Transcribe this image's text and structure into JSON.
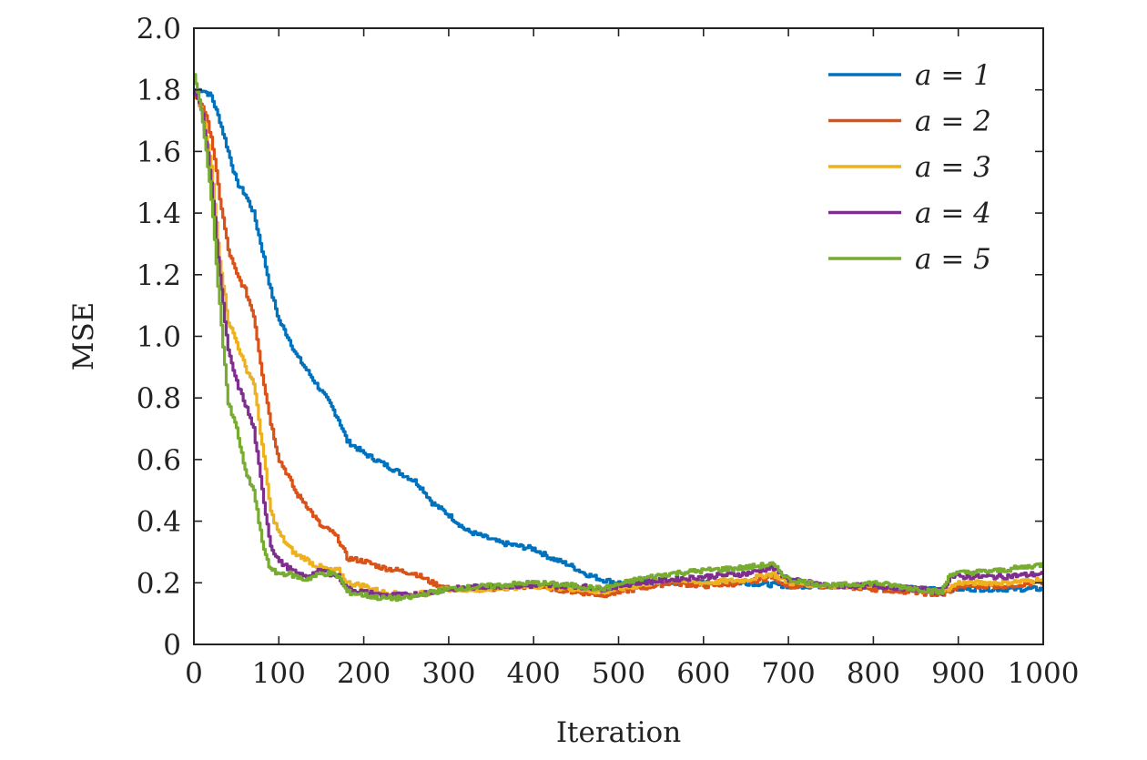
{
  "chart_data": {
    "type": "line",
    "title": "",
    "xlabel": "Iteration",
    "ylabel": "MSE",
    "xlim": [
      0,
      1000
    ],
    "ylim": [
      0,
      2.0
    ],
    "xticks": [
      0,
      100,
      200,
      300,
      400,
      500,
      600,
      700,
      800,
      900,
      1000
    ],
    "xtick_labels": [
      "0",
      "100",
      "200",
      "300",
      "400",
      "500",
      "600",
      "700",
      "800",
      "900",
      "1000"
    ],
    "yticks": [
      0,
      0.2,
      0.4,
      0.6,
      0.8,
      1.0,
      1.2,
      1.4,
      1.6,
      1.8,
      2.0
    ],
    "ytick_labels": [
      "0",
      "0.2",
      "0.4",
      "0.6",
      "0.8",
      "1.0",
      "1.2",
      "1.4",
      "1.6",
      "1.8",
      "2.0"
    ],
    "grid": false,
    "legend_position": "top-right",
    "series": [
      {
        "name": "a = 1",
        "color": "#0072BD",
        "x": [
          0,
          10,
          20,
          30,
          40,
          50,
          60,
          70,
          80,
          90,
          100,
          110,
          120,
          130,
          140,
          150,
          160,
          170,
          180,
          190,
          200,
          220,
          240,
          260,
          270,
          280,
          300,
          320,
          340,
          360,
          380,
          400,
          420,
          440,
          460,
          480,
          500,
          520,
          550,
          600,
          650,
          700,
          750,
          800,
          850,
          900,
          950,
          1000
        ],
        "y": [
          1.8,
          1.8,
          1.78,
          1.7,
          1.6,
          1.5,
          1.46,
          1.4,
          1.28,
          1.15,
          1.05,
          1.0,
          0.94,
          0.9,
          0.86,
          0.82,
          0.78,
          0.73,
          0.66,
          0.64,
          0.62,
          0.59,
          0.56,
          0.53,
          0.5,
          0.46,
          0.42,
          0.37,
          0.35,
          0.33,
          0.32,
          0.31,
          0.28,
          0.26,
          0.23,
          0.21,
          0.2,
          0.2,
          0.2,
          0.2,
          0.2,
          0.19,
          0.19,
          0.19,
          0.18,
          0.18,
          0.18,
          0.18
        ]
      },
      {
        "name": "a = 2",
        "color": "#D95319",
        "x": [
          0,
          10,
          20,
          30,
          40,
          50,
          60,
          70,
          80,
          90,
          100,
          110,
          120,
          130,
          140,
          150,
          160,
          170,
          180,
          200,
          220,
          240,
          260,
          280,
          300,
          350,
          400,
          450,
          480,
          520,
          560,
          600,
          650,
          680,
          700,
          750,
          800,
          850,
          880,
          900,
          950,
          1000
        ],
        "y": [
          1.78,
          1.75,
          1.65,
          1.45,
          1.28,
          1.2,
          1.15,
          1.07,
          0.88,
          0.72,
          0.6,
          0.55,
          0.49,
          0.46,
          0.42,
          0.38,
          0.37,
          0.34,
          0.28,
          0.27,
          0.25,
          0.24,
          0.23,
          0.2,
          0.18,
          0.18,
          0.19,
          0.17,
          0.16,
          0.18,
          0.2,
          0.19,
          0.2,
          0.22,
          0.19,
          0.19,
          0.18,
          0.17,
          0.16,
          0.19,
          0.19,
          0.2
        ]
      },
      {
        "name": "a = 3",
        "color": "#EDB120",
        "x": [
          0,
          10,
          20,
          30,
          40,
          50,
          60,
          70,
          80,
          90,
          100,
          110,
          120,
          130,
          140,
          150,
          160,
          170,
          180,
          200,
          220,
          250,
          280,
          300,
          350,
          400,
          450,
          480,
          520,
          560,
          600,
          650,
          680,
          700,
          750,
          800,
          850,
          880,
          900,
          950,
          1000
        ],
        "y": [
          1.8,
          1.72,
          1.55,
          1.25,
          1.05,
          0.98,
          0.9,
          0.85,
          0.65,
          0.43,
          0.36,
          0.32,
          0.29,
          0.28,
          0.26,
          0.25,
          0.24,
          0.24,
          0.2,
          0.19,
          0.17,
          0.16,
          0.17,
          0.18,
          0.18,
          0.19,
          0.18,
          0.17,
          0.19,
          0.21,
          0.2,
          0.21,
          0.23,
          0.2,
          0.19,
          0.19,
          0.18,
          0.17,
          0.2,
          0.2,
          0.21
        ]
      },
      {
        "name": "a = 4",
        "color": "#7E2F8E",
        "x": [
          0,
          10,
          20,
          30,
          40,
          50,
          60,
          70,
          80,
          90,
          100,
          110,
          120,
          130,
          140,
          150,
          160,
          170,
          180,
          200,
          220,
          250,
          280,
          300,
          350,
          400,
          450,
          480,
          520,
          560,
          600,
          650,
          680,
          700,
          750,
          800,
          850,
          880,
          890,
          950,
          1000
        ],
        "y": [
          1.8,
          1.72,
          1.5,
          1.2,
          0.95,
          0.85,
          0.78,
          0.7,
          0.5,
          0.32,
          0.27,
          0.25,
          0.23,
          0.22,
          0.23,
          0.24,
          0.23,
          0.22,
          0.18,
          0.17,
          0.16,
          0.16,
          0.17,
          0.18,
          0.19,
          0.19,
          0.19,
          0.18,
          0.2,
          0.21,
          0.22,
          0.23,
          0.25,
          0.21,
          0.19,
          0.19,
          0.18,
          0.17,
          0.22,
          0.22,
          0.23
        ]
      },
      {
        "name": "a = 5",
        "color": "#77AC30",
        "x": [
          0,
          10,
          20,
          30,
          40,
          50,
          60,
          70,
          80,
          90,
          100,
          110,
          120,
          130,
          140,
          150,
          160,
          170,
          180,
          200,
          220,
          250,
          280,
          300,
          350,
          400,
          450,
          480,
          520,
          560,
          600,
          650,
          680,
          700,
          750,
          800,
          850,
          880,
          890,
          950,
          1000
        ],
        "y": [
          1.85,
          1.7,
          1.45,
          1.1,
          0.78,
          0.7,
          0.56,
          0.5,
          0.33,
          0.24,
          0.23,
          0.23,
          0.22,
          0.21,
          0.22,
          0.23,
          0.23,
          0.22,
          0.17,
          0.16,
          0.15,
          0.15,
          0.17,
          0.18,
          0.19,
          0.2,
          0.19,
          0.18,
          0.21,
          0.23,
          0.24,
          0.25,
          0.26,
          0.21,
          0.19,
          0.2,
          0.18,
          0.17,
          0.23,
          0.24,
          0.26
        ]
      }
    ]
  }
}
